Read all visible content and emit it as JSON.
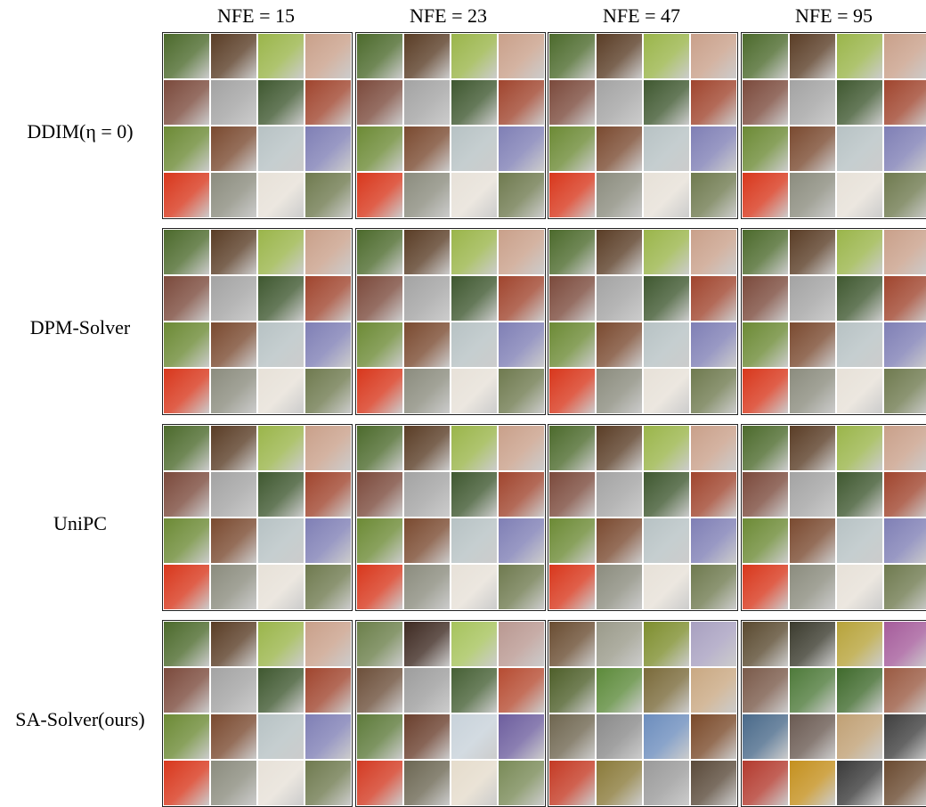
{
  "columns": [
    "NFE = 15",
    "NFE = 23",
    "NFE = 47",
    "NFE = 95"
  ],
  "rows": [
    "DDIM(η = 0)",
    "DPM-Solver",
    "UniPC",
    "SA-Solver(ours)"
  ],
  "palettes": {
    "base": [
      "#4c6a2c",
      "#5a3d26",
      "#9ab54a",
      "#c9a08a",
      "#7b4a3c",
      "#a3a3a3",
      "#3f5830",
      "#a0452e",
      "#6c8a35",
      "#7a4a30",
      "#b7c2c4",
      "#7f7fb5",
      "#d8371c",
      "#8b8c7e",
      "#e7e1d8",
      "#6f7a4f"
    ],
    "sa23": [
      "#6b7f4a",
      "#3e2a22",
      "#a6c35c",
      "#b99891",
      "#6c4f3a",
      "#9d9d9d",
      "#466035",
      "#b64c32",
      "#5d7a3a",
      "#6a3f2d",
      "#c8d2da",
      "#6d5e9e",
      "#d33a22",
      "#6c6753",
      "#e5dccc",
      "#798a57"
    ],
    "sa47": [
      "#6a4d32",
      "#9a9a8a",
      "#7e8e2e",
      "#a8a0c0",
      "#4e5f2a",
      "#5c8a3a",
      "#7a6a3a",
      "#c9a882",
      "#6f6650",
      "#8a8a8a",
      "#6c8dbd",
      "#7a4a2a",
      "#c43a24",
      "#8a7a3a",
      "#9a9a9a",
      "#5a4a3a"
    ],
    "sa95": [
      "#5a4a30",
      "#3b3b2e",
      "#b7a33a",
      "#a55c9b",
      "#7a5a4a",
      "#4e7a3a",
      "#3f6a2c",
      "#9a5a42",
      "#4a6a8a",
      "#6a5a52",
      "#c0a074",
      "#3f3f3f",
      "#b33a2e",
      "#c4901e",
      "#3a3a3a",
      "#6a4a30"
    ]
  }
}
